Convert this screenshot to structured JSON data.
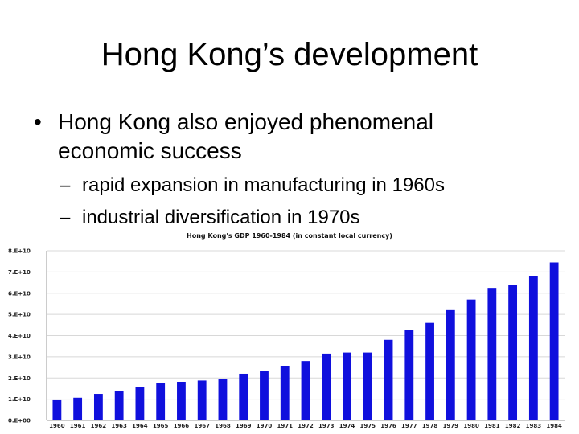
{
  "slide": {
    "title": "Hong Kong’s development",
    "bullet": {
      "marker": "•",
      "text": "Hong Kong also enjoyed phenomenal economic success",
      "sub": [
        {
          "marker": "–",
          "text": "rapid expansion in manufacturing in 1960s"
        },
        {
          "marker": "–",
          "text": "industrial diversification in 1970s"
        }
      ]
    }
  },
  "chart_data": {
    "type": "bar",
    "title": "Hong Kong's GDP 1960-1984 (in constant local currency)",
    "xlabel": "",
    "ylabel": "",
    "categories": [
      "1960",
      "1961",
      "1962",
      "1963",
      "1964",
      "1965",
      "1966",
      "1967",
      "1968",
      "1969",
      "1970",
      "1971",
      "1972",
      "1973",
      "1974",
      "1975",
      "1976",
      "1977",
      "1978",
      "1979",
      "1980",
      "1981",
      "1982",
      "1983",
      "1984"
    ],
    "values": [
      9500000000.0,
      10700000000.0,
      12500000000.0,
      14000000000.0,
      15800000000.0,
      17500000000.0,
      18200000000.0,
      18800000000.0,
      19500000000.0,
      22000000000.0,
      23500000000.0,
      25500000000.0,
      28000000000.0,
      31500000000.0,
      32000000000.0,
      32000000000.0,
      38000000000.0,
      42500000000.0,
      46000000000.0,
      52000000000.0,
      57000000000.0,
      62500000000.0,
      64000000000.0,
      68000000000.0,
      74500000000.0
    ],
    "y_ticks": [
      "0.E+00",
      "1.E+10",
      "2.E+10",
      "3.E+10",
      "4.E+10",
      "5.E+10",
      "6.E+10",
      "7.E+10",
      "8.E+10"
    ],
    "ylim": [
      0,
      80000000000.0
    ],
    "grid": true,
    "bar_color": "#1010dd"
  }
}
